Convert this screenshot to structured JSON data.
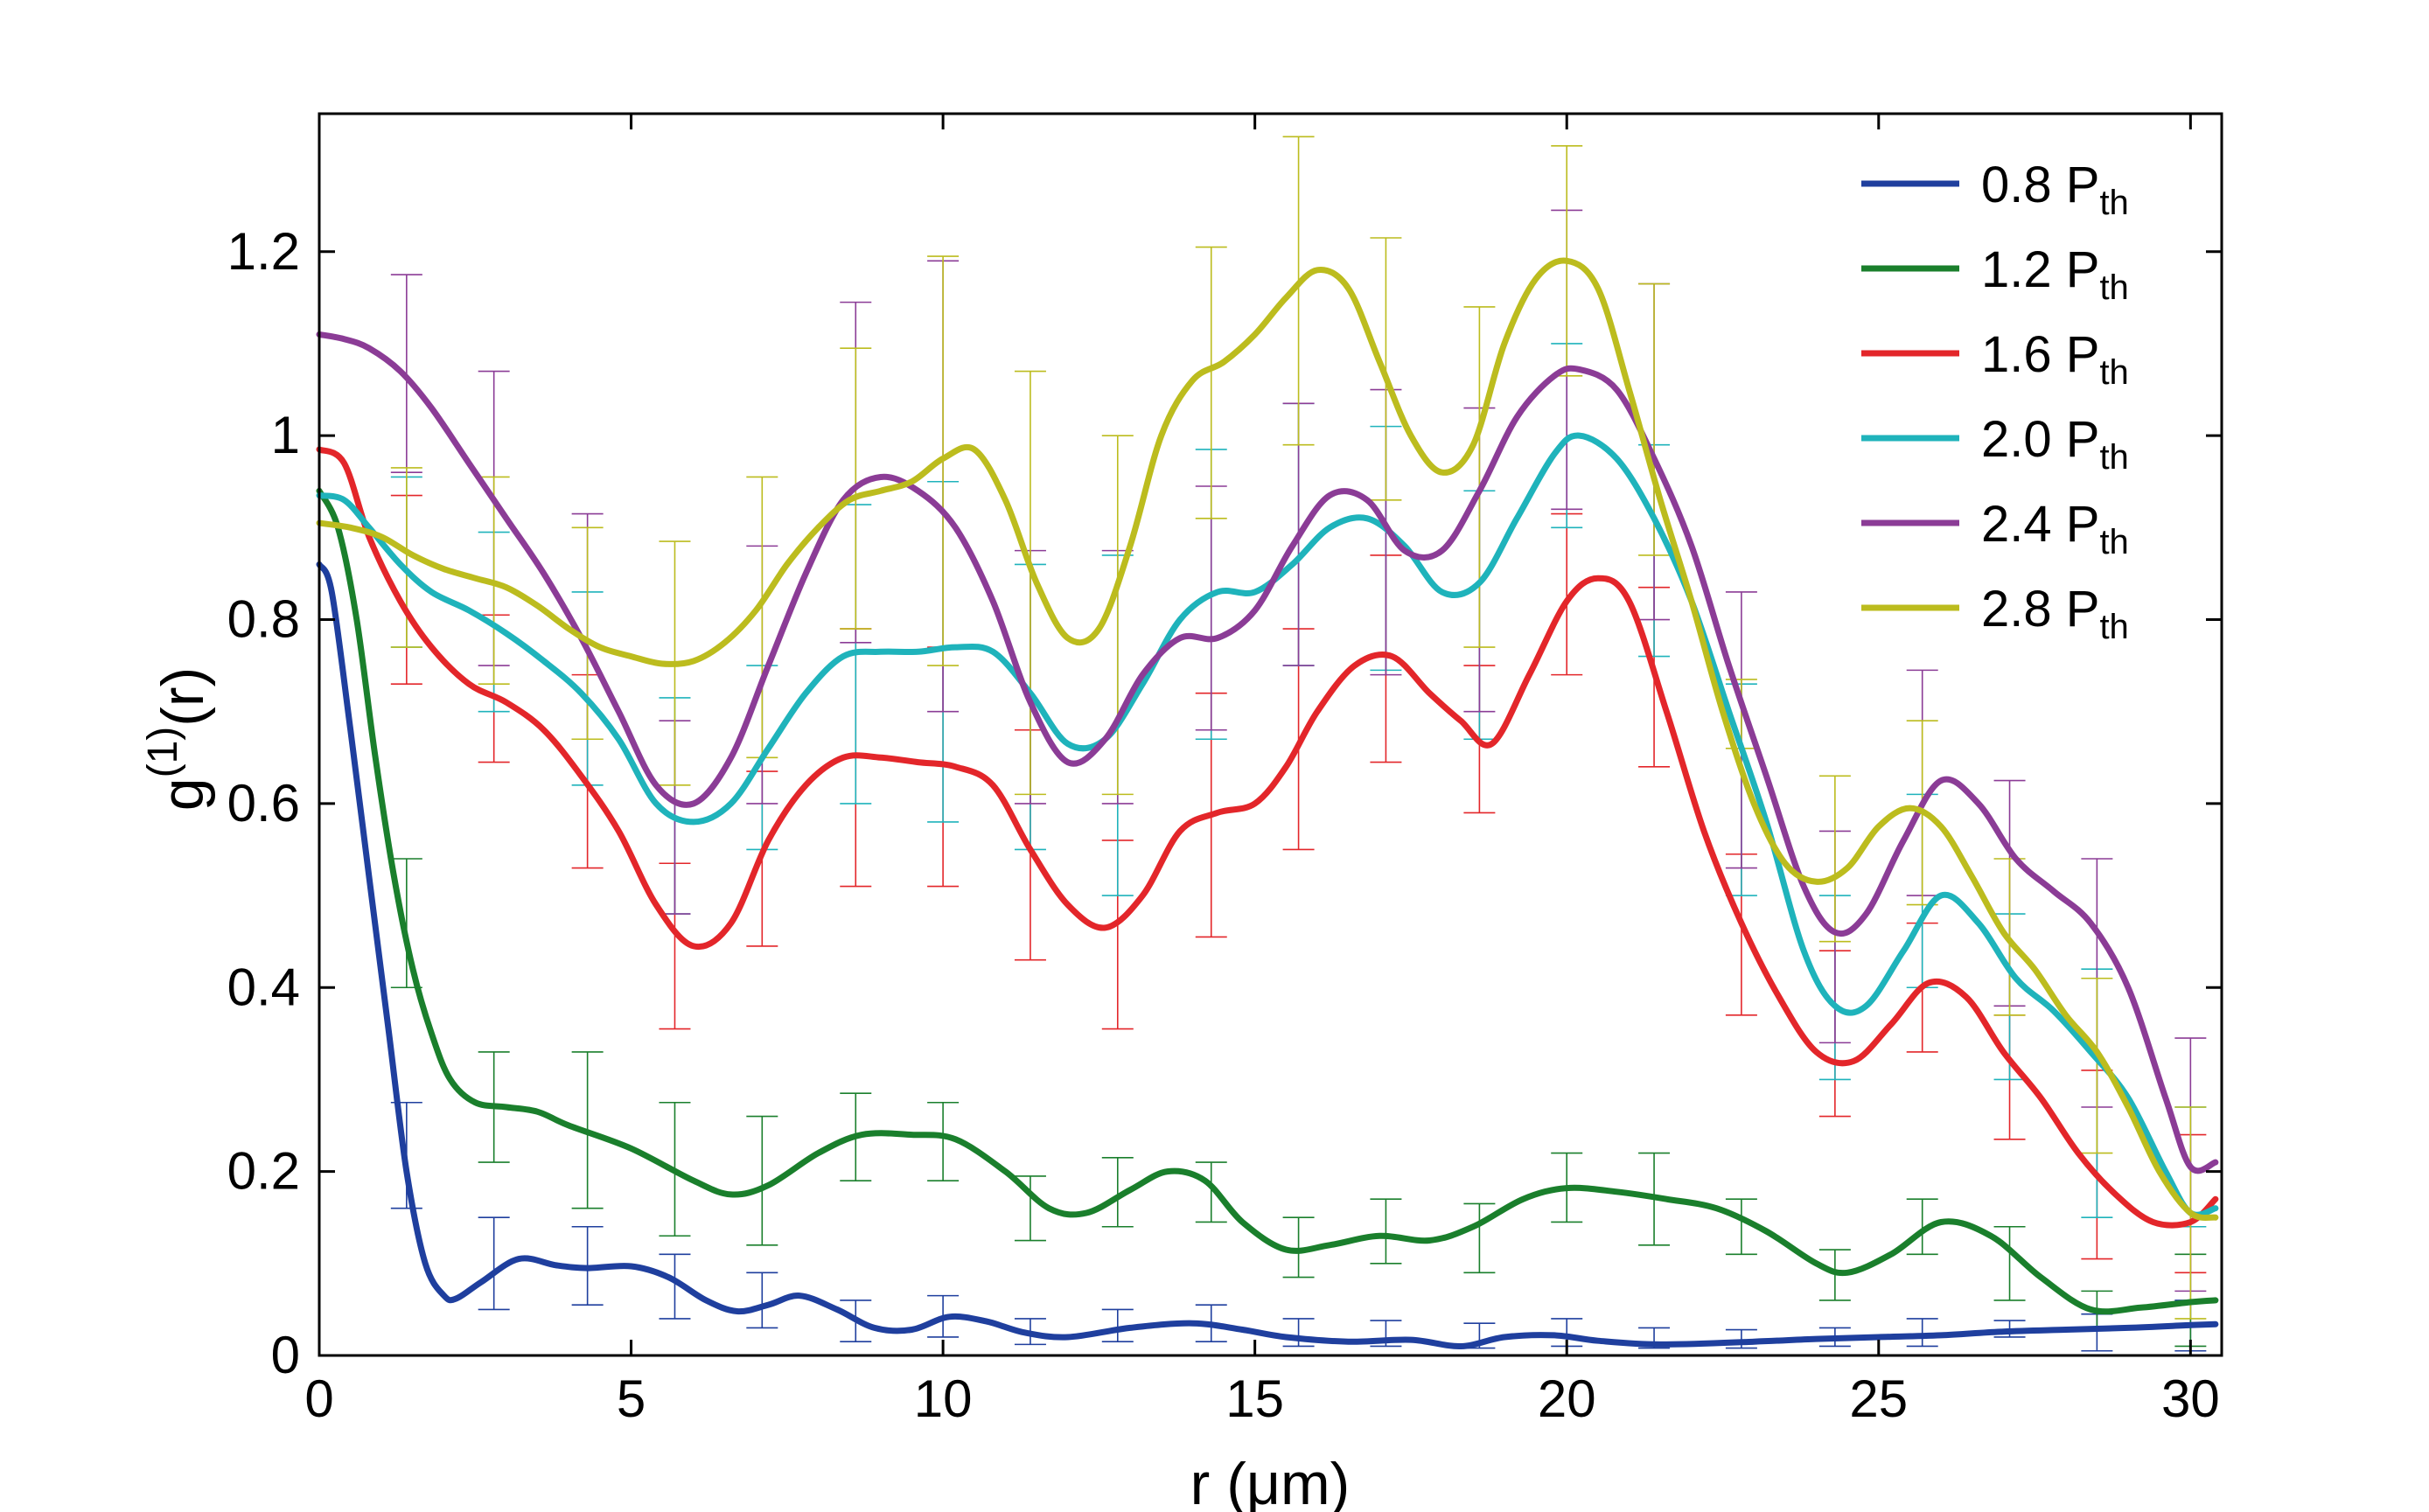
{
  "chart_data": {
    "type": "line",
    "title": "",
    "xlabel": "r (μm)",
    "ylabel_main": "g",
    "ylabel_sup": "(1)",
    "ylabel_tail": "(r)",
    "xlim": [
      0,
      30.5
    ],
    "ylim": [
      0,
      1.35
    ],
    "xticks": [
      0,
      5,
      10,
      15,
      20,
      25,
      30
    ],
    "xtick_labels": [
      "0",
      "5",
      "10",
      "15",
      "20",
      "25",
      "30"
    ],
    "yticks": [
      0,
      0.2,
      0.4,
      0.6,
      0.8,
      1.0,
      1.2
    ],
    "ytick_labels": [
      "0",
      "0.2",
      "0.4",
      "0.6",
      "0.8",
      "1",
      "1.2"
    ],
    "grid": false,
    "legend_position": "top-right",
    "series": [
      {
        "name_main": "0.8 P",
        "name_sub": "th",
        "color": "#1f3f9e",
        "x": [
          0,
          0.2,
          0.5,
          0.8,
          1.1,
          1.4,
          1.7,
          2.0,
          2.2,
          2.6,
          3.2,
          3.8,
          4.3,
          5.0,
          5.6,
          6.2,
          6.7,
          7.2,
          7.7,
          8.3,
          8.9,
          9.5,
          10.1,
          10.7,
          11.3,
          12.0,
          13.0,
          14.0,
          14.8,
          15.5,
          16.5,
          17.5,
          18.3,
          19.0,
          19.8,
          20.5,
          21.5,
          23.0,
          24.0,
          25.0,
          26.0,
          27.0,
          28.0,
          29.0,
          30.0,
          30.4
        ],
        "y": [
          0.86,
          0.83,
          0.68,
          0.52,
          0.36,
          0.2,
          0.1,
          0.065,
          0.062,
          0.08,
          0.105,
          0.098,
          0.095,
          0.097,
          0.085,
          0.06,
          0.048,
          0.055,
          0.065,
          0.05,
          0.03,
          0.028,
          0.042,
          0.037,
          0.025,
          0.02,
          0.03,
          0.035,
          0.028,
          0.02,
          0.015,
          0.017,
          0.01,
          0.02,
          0.022,
          0.016,
          0.012,
          0.015,
          0.018,
          0.02,
          0.022,
          0.026,
          0.028,
          0.03,
          0.033,
          0.034
        ],
        "err_x": [
          1.4,
          2.8,
          4.3,
          5.7,
          7.1,
          8.6,
          10.0,
          11.4,
          12.8,
          14.3,
          15.7,
          17.1,
          18.6,
          20.0,
          21.4,
          22.8,
          24.3,
          25.7,
          27.1,
          28.5,
          30.0
        ],
        "err_lo": [
          0.16,
          0.05,
          0.055,
          0.04,
          0.03,
          0.015,
          0.02,
          0.012,
          0.015,
          0.015,
          0.01,
          0.01,
          0.008,
          0.01,
          0.008,
          0.008,
          0.01,
          0.01,
          0.02,
          0.005,
          0.005
        ],
        "err_hi": [
          0.275,
          0.15,
          0.14,
          0.11,
          0.09,
          0.06,
          0.065,
          0.04,
          0.05,
          0.055,
          0.04,
          0.038,
          0.035,
          0.04,
          0.03,
          0.028,
          0.03,
          0.04,
          0.038,
          0.045,
          0.06
        ]
      },
      {
        "name_main": "1.2 P",
        "name_sub": "th",
        "color": "#1a7f2c",
        "x": [
          0,
          0.3,
          0.6,
          0.9,
          1.2,
          1.5,
          1.8,
          2.1,
          2.5,
          3.0,
          3.5,
          4.0,
          5.0,
          6.0,
          6.6,
          7.2,
          8.0,
          8.7,
          9.5,
          10.2,
          11.0,
          11.7,
          12.3,
          13.0,
          13.6,
          14.2,
          14.8,
          15.5,
          16.2,
          17.0,
          17.8,
          18.5,
          19.3,
          20.0,
          20.8,
          21.6,
          22.4,
          23.2,
          24.0,
          24.5,
          25.2,
          26.0,
          26.8,
          27.6,
          28.4,
          29.2,
          30.0,
          30.4
        ],
        "y": [
          0.94,
          0.9,
          0.8,
          0.65,
          0.52,
          0.42,
          0.35,
          0.3,
          0.275,
          0.27,
          0.265,
          0.25,
          0.225,
          0.19,
          0.175,
          0.185,
          0.22,
          0.24,
          0.24,
          0.235,
          0.2,
          0.16,
          0.155,
          0.18,
          0.2,
          0.19,
          0.145,
          0.115,
          0.12,
          0.13,
          0.125,
          0.14,
          0.17,
          0.182,
          0.178,
          0.17,
          0.16,
          0.135,
          0.1,
          0.09,
          0.11,
          0.145,
          0.13,
          0.085,
          0.05,
          0.052,
          0.058,
          0.06
        ],
        "err_x": [
          1.4,
          2.8,
          4.3,
          5.7,
          7.1,
          8.6,
          10.0,
          11.4,
          12.8,
          14.3,
          15.7,
          17.1,
          18.6,
          20.0,
          21.4,
          22.8,
          24.3,
          25.7,
          27.1,
          28.5,
          30.0
        ],
        "err_lo": [
          0.4,
          0.21,
          0.16,
          0.13,
          0.12,
          0.19,
          0.19,
          0.125,
          0.14,
          0.145,
          0.085,
          0.1,
          0.09,
          0.145,
          0.12,
          0.11,
          0.06,
          0.11,
          0.06,
          0.03,
          0.01
        ],
        "err_hi": [
          0.54,
          0.33,
          0.33,
          0.275,
          0.26,
          0.285,
          0.275,
          0.195,
          0.215,
          0.21,
          0.15,
          0.17,
          0.165,
          0.22,
          0.22,
          0.17,
          0.115,
          0.17,
          0.14,
          0.07,
          0.11
        ]
      },
      {
        "name_main": "1.6 P",
        "name_sub": "th",
        "color": "#e3262a",
        "x": [
          0,
          0.4,
          0.8,
          1.3,
          1.8,
          2.4,
          3.0,
          3.6,
          4.2,
          4.8,
          5.4,
          6.0,
          6.6,
          7.2,
          7.8,
          8.4,
          9.0,
          9.6,
          10.2,
          10.8,
          11.4,
          12.0,
          12.6,
          13.2,
          13.8,
          14.4,
          15.0,
          15.5,
          16.0,
          16.6,
          17.2,
          17.8,
          18.3,
          18.8,
          19.4,
          20.0,
          20.5,
          21.0,
          21.6,
          22.2,
          22.8,
          23.4,
          24.0,
          24.6,
          25.2,
          25.8,
          26.4,
          27.0,
          27.6,
          28.2,
          28.8,
          29.4,
          30.0,
          30.4
        ],
        "y": [
          0.985,
          0.97,
          0.89,
          0.82,
          0.77,
          0.73,
          0.71,
          0.68,
          0.63,
          0.57,
          0.49,
          0.445,
          0.47,
          0.56,
          0.62,
          0.65,
          0.65,
          0.645,
          0.64,
          0.62,
          0.55,
          0.49,
          0.465,
          0.5,
          0.57,
          0.59,
          0.6,
          0.64,
          0.7,
          0.75,
          0.76,
          0.72,
          0.69,
          0.665,
          0.74,
          0.82,
          0.845,
          0.82,
          0.7,
          0.57,
          0.47,
          0.39,
          0.33,
          0.32,
          0.36,
          0.405,
          0.39,
          0.33,
          0.28,
          0.22,
          0.175,
          0.145,
          0.145,
          0.17
        ],
        "err_x": [
          1.4,
          2.8,
          4.3,
          5.7,
          7.1,
          8.6,
          10.0,
          11.4,
          12.8,
          14.3,
          15.7,
          17.1,
          18.6,
          20.0,
          21.4,
          22.8,
          24.3,
          25.7,
          27.1,
          28.5,
          30.0
        ],
        "err_lo": [
          0.73,
          0.645,
          0.53,
          0.355,
          0.445,
          0.51,
          0.51,
          0.43,
          0.355,
          0.455,
          0.55,
          0.645,
          0.59,
          0.74,
          0.64,
          0.37,
          0.26,
          0.33,
          0.235,
          0.105,
          0.09
        ],
        "err_hi": [
          0.935,
          0.805,
          0.74,
          0.535,
          0.635,
          0.79,
          0.77,
          0.68,
          0.56,
          0.72,
          0.79,
          0.87,
          0.75,
          0.915,
          0.835,
          0.545,
          0.44,
          0.47,
          0.37,
          0.31,
          0.24
        ]
      },
      {
        "name_main": "2.0 P",
        "name_sub": "th",
        "color": "#1fb3bb",
        "x": [
          0,
          0.4,
          0.8,
          1.3,
          1.8,
          2.4,
          3.0,
          3.6,
          4.2,
          4.8,
          5.4,
          6.0,
          6.6,
          7.2,
          7.8,
          8.4,
          9.0,
          9.6,
          10.2,
          10.8,
          11.4,
          12.0,
          12.6,
          13.2,
          13.8,
          14.4,
          15.0,
          15.6,
          16.2,
          16.8,
          17.4,
          18.0,
          18.6,
          19.2,
          19.8,
          20.2,
          20.8,
          21.4,
          22.0,
          22.6,
          23.2,
          23.8,
          24.3,
          24.8,
          25.4,
          26.0,
          26.6,
          27.2,
          27.8,
          28.4,
          29.0,
          29.6,
          30.0,
          30.4
        ],
        "y": [
          0.935,
          0.93,
          0.9,
          0.86,
          0.83,
          0.81,
          0.785,
          0.755,
          0.72,
          0.67,
          0.6,
          0.58,
          0.6,
          0.66,
          0.72,
          0.76,
          0.765,
          0.765,
          0.77,
          0.765,
          0.72,
          0.665,
          0.67,
          0.73,
          0.8,
          0.83,
          0.83,
          0.86,
          0.9,
          0.91,
          0.88,
          0.83,
          0.84,
          0.91,
          0.98,
          1.0,
          0.975,
          0.91,
          0.82,
          0.7,
          0.58,
          0.44,
          0.38,
          0.38,
          0.44,
          0.5,
          0.47,
          0.41,
          0.375,
          0.33,
          0.28,
          0.2,
          0.155,
          0.16
        ],
        "err_x": [
          1.4,
          2.8,
          4.3,
          5.7,
          7.1,
          8.6,
          10.0,
          11.4,
          12.8,
          14.3,
          15.7,
          17.1,
          18.6,
          20.0,
          21.4,
          22.8,
          24.3,
          25.7,
          27.1,
          28.5,
          30.0
        ],
        "err_lo": [
          0.77,
          0.7,
          0.62,
          0.48,
          0.55,
          0.6,
          0.58,
          0.55,
          0.5,
          0.67,
          0.75,
          0.745,
          0.67,
          0.9,
          0.76,
          0.5,
          0.3,
          0.4,
          0.3,
          0.15,
          0.14
        ],
        "err_hi": [
          0.955,
          0.895,
          0.83,
          0.715,
          0.75,
          0.925,
          0.95,
          0.86,
          0.87,
          0.985,
          1.035,
          1.01,
          0.94,
          1.1,
          0.99,
          0.73,
          0.5,
          0.61,
          0.48,
          0.42,
          0.27
        ]
      },
      {
        "name_main": "2.4 P",
        "name_sub": "th",
        "color": "#8b3c96",
        "x": [
          0,
          0.4,
          0.8,
          1.3,
          1.8,
          2.4,
          3.0,
          3.6,
          4.2,
          4.8,
          5.4,
          6.0,
          6.6,
          7.2,
          7.8,
          8.4,
          9.0,
          9.6,
          10.2,
          10.8,
          11.4,
          12.0,
          12.6,
          13.2,
          13.8,
          14.4,
          15.0,
          15.6,
          16.2,
          16.8,
          17.4,
          18.0,
          18.6,
          19.2,
          19.8,
          20.2,
          20.8,
          21.4,
          22.0,
          22.6,
          23.2,
          23.8,
          24.3,
          24.8,
          25.4,
          26.0,
          26.6,
          27.2,
          27.8,
          28.4,
          29.0,
          29.6,
          30.0,
          30.4
        ],
        "y": [
          1.11,
          1.105,
          1.095,
          1.07,
          1.03,
          0.97,
          0.91,
          0.85,
          0.78,
          0.7,
          0.62,
          0.6,
          0.65,
          0.75,
          0.85,
          0.93,
          0.955,
          0.94,
          0.9,
          0.82,
          0.71,
          0.645,
          0.67,
          0.74,
          0.78,
          0.78,
          0.81,
          0.88,
          0.935,
          0.93,
          0.875,
          0.875,
          0.94,
          1.02,
          1.065,
          1.072,
          1.05,
          0.975,
          0.88,
          0.75,
          0.63,
          0.51,
          0.46,
          0.48,
          0.56,
          0.625,
          0.6,
          0.54,
          0.505,
          0.47,
          0.4,
          0.28,
          0.205,
          0.21
        ],
        "err_x": [
          1.4,
          2.8,
          4.3,
          5.7,
          7.1,
          8.6,
          10.0,
          11.4,
          12.8,
          14.3,
          15.7,
          17.1,
          18.6,
          20.0,
          21.4,
          22.8,
          24.3,
          25.7,
          27.1,
          28.5,
          30.0
        ],
        "err_lo": [
          0.96,
          0.75,
          0.67,
          0.48,
          0.6,
          0.775,
          0.7,
          0.6,
          0.6,
          0.68,
          0.75,
          0.74,
          0.7,
          0.92,
          0.8,
          0.53,
          0.34,
          0.5,
          0.38,
          0.27,
          0.07
        ],
        "err_hi": [
          1.175,
          1.07,
          0.915,
          0.69,
          0.88,
          1.145,
          1.19,
          0.875,
          0.875,
          0.945,
          1.035,
          1.05,
          1.03,
          1.245,
          1.165,
          0.83,
          0.57,
          0.745,
          0.625,
          0.54,
          0.345
        ]
      },
      {
        "name_main": "2.8 P",
        "name_sub": "th",
        "color": "#bcbc1e",
        "x": [
          0,
          0.5,
          1.0,
          1.5,
          2.0,
          2.5,
          3.0,
          3.5,
          4.0,
          4.5,
          5.0,
          5.5,
          6.0,
          6.5,
          7.0,
          7.5,
          8.0,
          8.5,
          9.0,
          9.5,
          10.0,
          10.5,
          11.0,
          11.5,
          12.0,
          12.5,
          13.0,
          13.5,
          14.0,
          14.5,
          15.0,
          15.5,
          16.0,
          16.5,
          17.0,
          17.5,
          18.0,
          18.5,
          19.0,
          19.5,
          20.0,
          20.5,
          21.0,
          21.5,
          22.0,
          22.5,
          23.0,
          23.5,
          24.0,
          24.5,
          25.0,
          25.5,
          26.0,
          26.5,
          27.0,
          27.5,
          28.0,
          28.5,
          29.0,
          29.5,
          30.0,
          30.4
        ],
        "y": [
          0.905,
          0.9,
          0.89,
          0.87,
          0.855,
          0.845,
          0.835,
          0.815,
          0.79,
          0.77,
          0.76,
          0.752,
          0.755,
          0.775,
          0.81,
          0.86,
          0.9,
          0.93,
          0.94,
          0.95,
          0.975,
          0.985,
          0.93,
          0.84,
          0.78,
          0.79,
          0.88,
          1.0,
          1.06,
          1.08,
          1.11,
          1.15,
          1.18,
          1.16,
          1.08,
          1.0,
          0.96,
          0.99,
          1.1,
          1.17,
          1.19,
          1.16,
          1.05,
          0.93,
          0.82,
          0.7,
          0.6,
          0.535,
          0.515,
          0.53,
          0.575,
          0.595,
          0.575,
          0.52,
          0.46,
          0.42,
          0.37,
          0.33,
          0.27,
          0.2,
          0.155,
          0.15
        ],
        "err_x": [
          1.4,
          2.8,
          4.3,
          5.7,
          7.1,
          8.6,
          10.0,
          11.4,
          12.8,
          14.3,
          15.7,
          17.1,
          18.6,
          20.0,
          21.4,
          22.8,
          24.3,
          25.7,
          27.1,
          28.5,
          30.0
        ],
        "err_lo": [
          0.77,
          0.73,
          0.67,
          0.62,
          0.65,
          0.79,
          0.75,
          0.61,
          0.61,
          0.91,
          0.99,
          0.93,
          0.77,
          1.065,
          0.87,
          0.66,
          0.45,
          0.49,
          0.37,
          0.22,
          0.04
        ],
        "err_hi": [
          0.965,
          0.955,
          0.9,
          0.885,
          0.955,
          1.095,
          1.195,
          1.07,
          1.0,
          1.205,
          1.325,
          1.215,
          1.14,
          1.315,
          1.165,
          0.735,
          0.63,
          0.69,
          0.54,
          0.41,
          0.27
        ]
      }
    ]
  }
}
